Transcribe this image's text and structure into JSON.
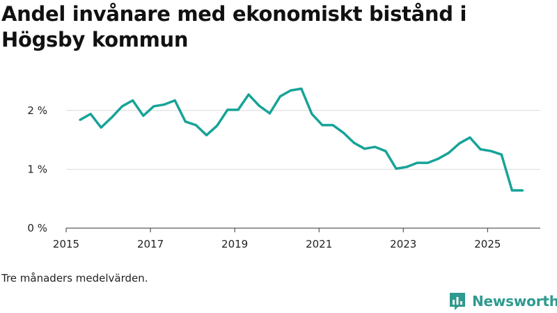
{
  "chart_data": {
    "type": "line",
    "title": "Andel invånare med ekonomiskt bistånd i Högsby kommun",
    "xlabel": "",
    "ylabel": "",
    "xlim": [
      2015,
      2026.25
    ],
    "ylim": [
      0,
      2.6
    ],
    "x_ticks": [
      2015,
      2017,
      2019,
      2021,
      2023,
      2025
    ],
    "y_ticks": [
      0,
      1,
      2
    ],
    "y_tick_labels": [
      "0 %",
      "1 %",
      "2 %"
    ],
    "color": "#17a398",
    "series": [
      {
        "name": "Andel invånare med ekonomiskt bistånd",
        "x": [
          2015.33,
          2015.58,
          2015.83,
          2016.08,
          2016.33,
          2016.58,
          2016.83,
          2017.08,
          2017.33,
          2017.58,
          2017.83,
          2018.08,
          2018.33,
          2018.58,
          2018.83,
          2019.08,
          2019.33,
          2019.58,
          2019.83,
          2020.08,
          2020.33,
          2020.58,
          2020.83,
          2021.08,
          2021.33,
          2021.58,
          2021.83,
          2022.08,
          2022.33,
          2022.58,
          2022.83,
          2023.08,
          2023.33,
          2023.58,
          2023.83,
          2024.08,
          2024.33,
          2024.58,
          2024.83,
          2025.08,
          2025.33,
          2025.58,
          2025.83
        ],
        "values": [
          1.84,
          1.94,
          1.71,
          1.88,
          2.07,
          2.17,
          1.91,
          2.07,
          2.1,
          2.17,
          1.81,
          1.75,
          1.58,
          1.74,
          2.01,
          2.01,
          2.27,
          2.08,
          1.95,
          2.24,
          2.34,
          2.37,
          1.94,
          1.75,
          1.75,
          1.62,
          1.45,
          1.35,
          1.38,
          1.31,
          1.01,
          1.04,
          1.11,
          1.11,
          1.18,
          1.28,
          1.44,
          1.54,
          1.34,
          1.31,
          1.25,
          0.64,
          0.64
        ]
      }
    ]
  },
  "footer": {
    "note": "Tre månaders medelvärden.",
    "brand": "Newsworthy",
    "logo_icon": "newsworthy-logo-icon",
    "brand_color": "#2f9a8f"
  }
}
